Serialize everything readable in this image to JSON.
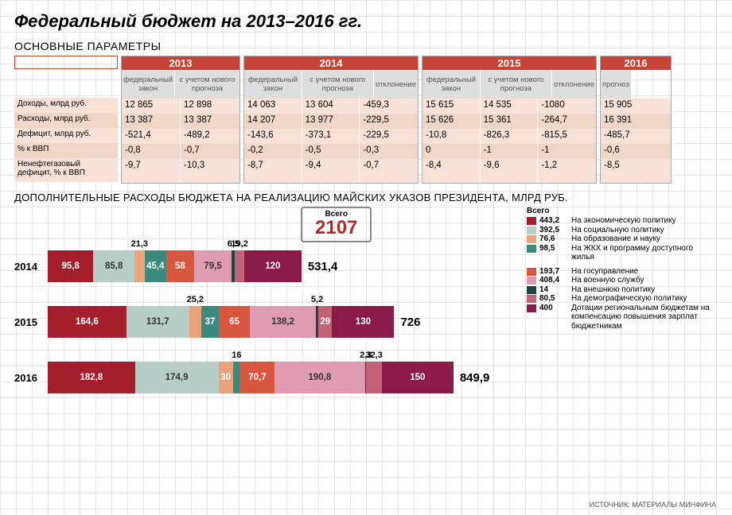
{
  "title": "Федеральный бюджет на 2013–2016 гг.",
  "subtitle": "ОСНОВНЫЕ ПАРАМЕТРЫ",
  "source": "ИСТОЧНИК: МАТЕРИАЛЫ МИНФИНА",
  "years": {
    "y2013": {
      "label": "2013",
      "cols": [
        "федеральный закон",
        "с учетом нового прогноза"
      ]
    },
    "y2014": {
      "label": "2014",
      "cols": [
        "федеральный закон",
        "с учетом нового прогноза",
        "отклонение"
      ]
    },
    "y2015": {
      "label": "2015",
      "cols": [
        "федеральный закон",
        "с учетом нового прогноза",
        "отклонение"
      ]
    },
    "y2016": {
      "label": "2016",
      "cols": [
        "прогноз"
      ]
    }
  },
  "rowLabels": [
    "Доходы, млрд руб.",
    "Расходы, млрд руб.",
    "Дефицит, млрд руб.",
    "% к ВВП",
    "Ненефтегазовый дефицит, % к ВВП"
  ],
  "tableData": {
    "y2013": [
      [
        "12 865",
        "12 898"
      ],
      [
        "13 387",
        "13 387"
      ],
      [
        "-521,4",
        "-489,2"
      ],
      [
        "-0,8",
        "-0,7"
      ],
      [
        "-9,7",
        "-10,3"
      ]
    ],
    "y2014": [
      [
        "14 063",
        "13 604",
        "-459,3"
      ],
      [
        "14 207",
        "13 977",
        "-229,5"
      ],
      [
        "-143,6",
        "-373,1",
        "-229,5"
      ],
      [
        "-0,2",
        "-0,5",
        "-0,3"
      ],
      [
        "-8,7",
        "-9,4",
        "-0,7"
      ]
    ],
    "y2015": [
      [
        "15 615",
        "14 535",
        "-1080"
      ],
      [
        "15 626",
        "15 361",
        "-264,7"
      ],
      [
        "-10,8",
        "-826,3",
        "-815,5"
      ],
      [
        "0",
        "-1",
        "-1"
      ],
      [
        "-8,4",
        "-9,6",
        "-1,2"
      ]
    ],
    "y2016": [
      [
        "15 905"
      ],
      [
        "16 391"
      ],
      [
        "-485,7"
      ],
      [
        "-0,6"
      ],
      [
        "-8,5"
      ]
    ]
  },
  "stripeColors": [
    "#f8e1d6",
    "#efd6c7"
  ],
  "chartTitle": "ДОПОЛНИТЕЛЬНЫЕ РАСХОДЫ БЮДЖЕТА НА РЕАЛИЗАЦИЮ МАЙСКИХ УКАЗОВ ПРЕЗИДЕНТА, МЛРД РУБ.",
  "totalBox": {
    "label": "Всего",
    "value": "2107"
  },
  "scale": 0.6,
  "categories": [
    {
      "key": "econ",
      "color": "#a51e2b",
      "name": "На экономическую политику",
      "total": "443,2"
    },
    {
      "key": "social",
      "color": "#b8cdc7",
      "name": "На социальную политику",
      "total": "392,5"
    },
    {
      "key": "edu",
      "color": "#e8a37b",
      "name": "На образование и науку",
      "total": "76,6"
    },
    {
      "key": "housing",
      "color": "#3a8a7d",
      "name": "На ЖКХ и программу доступного жилья",
      "total": "98,5"
    },
    {
      "key": "gov",
      "color": "#d8573f",
      "name": "На госуправление",
      "total": "193,7"
    },
    {
      "key": "mil",
      "color": "#df9bb2",
      "name": "На военную службу",
      "total": "408,4"
    },
    {
      "key": "foreign",
      "color": "#1f433f",
      "name": "На внешнюю политику",
      "total": "14"
    },
    {
      "key": "demo",
      "color": "#c16277",
      "name": "На демографическую политику",
      "total": "80,5"
    },
    {
      "key": "regional",
      "color": "#8a1a47",
      "name": "Дотации региональным бюджетам на компенсацию повышения зарплат бюджетникам",
      "total": "400"
    }
  ],
  "chartRows": [
    {
      "year": "2014",
      "total": "531,4",
      "segments": [
        {
          "key": "econ",
          "v": 95.8,
          "label": "95,8",
          "show": "in"
        },
        {
          "key": "social",
          "v": 85.8,
          "label": "85,8",
          "show": "in",
          "textDark": true
        },
        {
          "key": "edu",
          "v": 21.3,
          "label": "21,3",
          "show": "above"
        },
        {
          "key": "housing",
          "v": 45.4,
          "label": "45,4",
          "show": "in"
        },
        {
          "key": "gov",
          "v": 58,
          "label": "58",
          "show": "in"
        },
        {
          "key": "mil",
          "v": 79.5,
          "label": "79,5",
          "show": "in",
          "textDark": true
        },
        {
          "key": "foreign",
          "v": 6.5,
          "label": "6,5",
          "show": "above"
        },
        {
          "key": "demo",
          "v": 19.2,
          "label": "19,2",
          "show": "above"
        },
        {
          "key": "regional",
          "v": 120,
          "label": "120",
          "show": "in"
        }
      ]
    },
    {
      "year": "2015",
      "total": "726",
      "segments": [
        {
          "key": "econ",
          "v": 164.6,
          "label": "164,6",
          "show": "in"
        },
        {
          "key": "social",
          "v": 131.7,
          "label": "131,7",
          "show": "in",
          "textDark": true
        },
        {
          "key": "edu",
          "v": 25.2,
          "label": "25,2",
          "show": "above"
        },
        {
          "key": "housing",
          "v": 37,
          "label": "37",
          "show": "in"
        },
        {
          "key": "gov",
          "v": 65,
          "label": "65",
          "show": "in"
        },
        {
          "key": "mil",
          "v": 138.2,
          "label": "138,2",
          "show": "in",
          "textDark": true
        },
        {
          "key": "foreign",
          "v": 5.2,
          "label": "5,2",
          "show": "above"
        },
        {
          "key": "demo",
          "v": 29,
          "label": "29",
          "show": "in"
        },
        {
          "key": "regional",
          "v": 130,
          "label": "130",
          "show": "in"
        }
      ]
    },
    {
      "year": "2016",
      "total": "849,9",
      "segments": [
        {
          "key": "econ",
          "v": 182.8,
          "label": "182,8",
          "show": "in"
        },
        {
          "key": "social",
          "v": 174.9,
          "label": "174,9",
          "show": "in",
          "textDark": true
        },
        {
          "key": "edu",
          "v": 30,
          "label": "30",
          "show": "in"
        },
        {
          "key": "housing",
          "v": 16,
          "label": "16",
          "show": "above"
        },
        {
          "key": "gov",
          "v": 70.7,
          "label": "70,7",
          "show": "in"
        },
        {
          "key": "mil",
          "v": 190.8,
          "label": "190,8",
          "show": "in",
          "textDark": true
        },
        {
          "key": "foreign",
          "v": 2.3,
          "label": "2,3",
          "show": "above"
        },
        {
          "key": "demo",
          "v": 32.3,
          "label": "32,3",
          "show": "above"
        },
        {
          "key": "regional",
          "v": 150,
          "label": "150",
          "show": "in"
        }
      ]
    }
  ],
  "legendGroupSplit": 4
}
